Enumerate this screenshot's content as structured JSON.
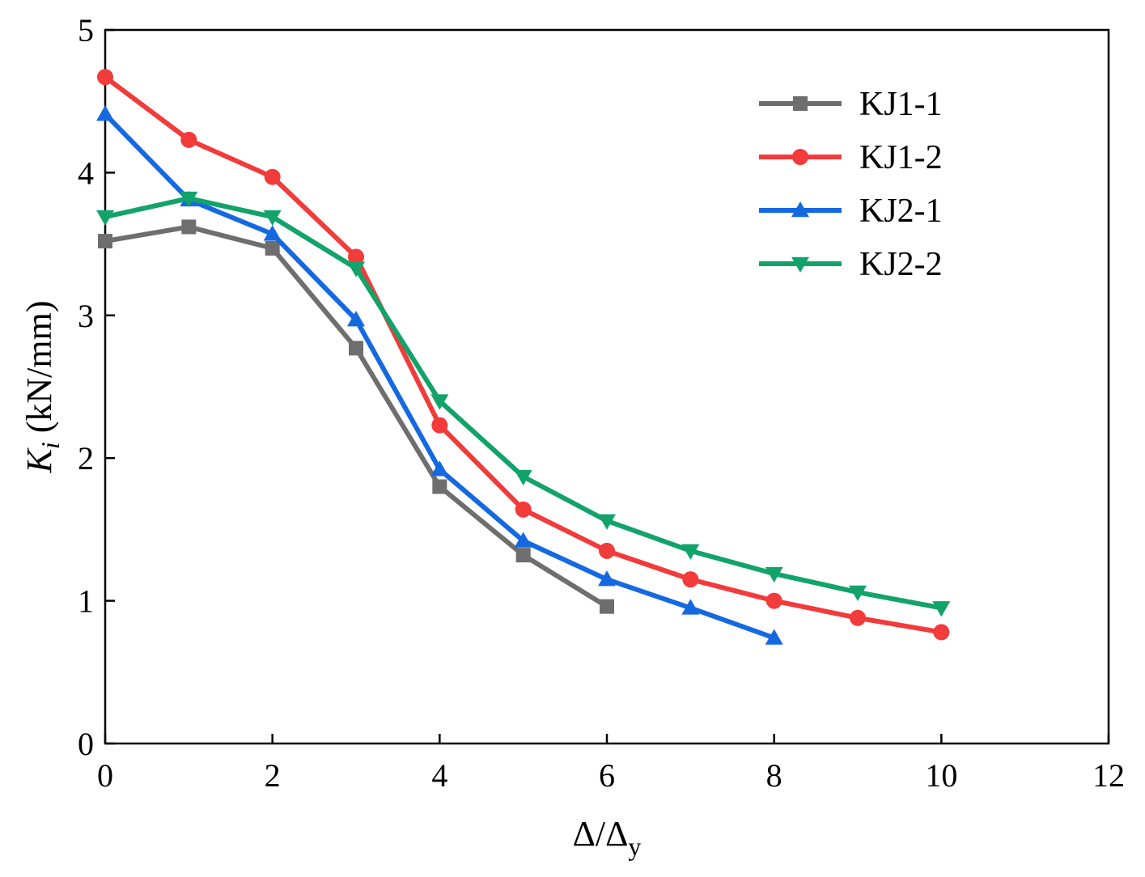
{
  "chart_data": {
    "type": "line",
    "title": "",
    "xlabel_main": "Δ/Δ",
    "xlabel_sub": "y",
    "ylabel_main": "K",
    "ylabel_sub": "i",
    "ylabel_unit": " (kN/mm)",
    "xlim": [
      0,
      12
    ],
    "ylim": [
      0,
      5
    ],
    "xticks": [
      "0",
      "2",
      "4",
      "6",
      "8",
      "10",
      "12"
    ],
    "yticks": [
      "0",
      "1",
      "2",
      "3",
      "4",
      "5"
    ],
    "grid": false,
    "legend_position": "top-right",
    "series": [
      {
        "name": "KJ1-1",
        "color": "#6e6e6e",
        "marker": "square",
        "x": [
          0,
          1,
          2,
          3,
          4,
          5,
          6
        ],
        "y": [
          3.52,
          3.62,
          3.47,
          2.77,
          1.8,
          1.32,
          0.96
        ]
      },
      {
        "name": "KJ1-2",
        "color": "#f23b3b",
        "marker": "circle",
        "x": [
          0,
          1,
          2,
          3,
          4,
          5,
          6,
          7,
          8,
          9,
          10
        ],
        "y": [
          4.67,
          4.23,
          3.97,
          3.41,
          2.23,
          1.64,
          1.35,
          1.15,
          1.0,
          0.88,
          0.78
        ]
      },
      {
        "name": "KJ2-1",
        "color": "#1569e0",
        "marker": "triangle-up",
        "x": [
          0,
          1,
          2,
          3,
          4,
          5,
          6,
          7,
          8
        ],
        "y": [
          4.41,
          3.81,
          3.57,
          2.97,
          1.92,
          1.42,
          1.15,
          0.95,
          0.74
        ]
      },
      {
        "name": "KJ2-2",
        "color": "#12a36b",
        "marker": "triangle-down",
        "x": [
          0,
          1,
          2,
          3,
          4,
          5,
          6,
          7,
          8,
          9,
          10
        ],
        "y": [
          3.69,
          3.82,
          3.69,
          3.33,
          2.4,
          1.87,
          1.56,
          1.35,
          1.19,
          1.06,
          0.95
        ]
      }
    ]
  }
}
